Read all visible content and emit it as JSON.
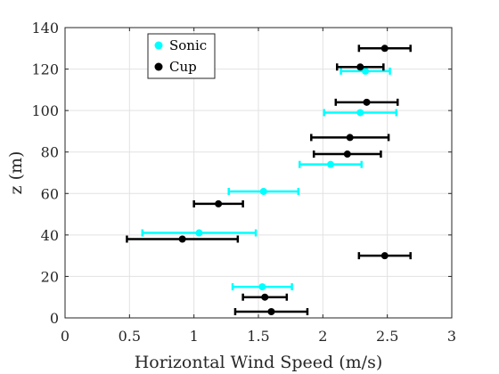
{
  "chart_data": {
    "type": "scatter",
    "title": "",
    "xlabel": "Horizontal Wind Speed (m/s)",
    "ylabel": "z (m)",
    "xlim": [
      0,
      3
    ],
    "ylim": [
      0,
      140
    ],
    "xticks": [
      0,
      0.5,
      1,
      1.5,
      2,
      2.5,
      3
    ],
    "yticks": [
      0,
      20,
      40,
      60,
      80,
      100,
      120,
      140
    ],
    "xtick_labels": [
      "0",
      "0.5",
      "1",
      "1.5",
      "2",
      "2.5",
      "3"
    ],
    "ytick_labels": [
      "0",
      "20",
      "40",
      "60",
      "80",
      "100",
      "120",
      "140"
    ],
    "grid": true,
    "legend_position": "top-left",
    "error_bars": "horizontal",
    "series": [
      {
        "name": "Sonic",
        "color": "#00ffff",
        "points": [
          {
            "x": 1.53,
            "y": 15,
            "xerr": 0.23
          },
          {
            "x": 1.04,
            "y": 41,
            "xerr": 0.44
          },
          {
            "x": 1.54,
            "y": 61,
            "xerr": 0.27
          },
          {
            "x": 2.06,
            "y": 74,
            "xerr": 0.24
          },
          {
            "x": 2.29,
            "y": 99,
            "xerr": 0.28
          },
          {
            "x": 2.33,
            "y": 119,
            "xerr": 0.19
          }
        ]
      },
      {
        "name": "Cup",
        "color": "#000000",
        "points": [
          {
            "x": 1.6,
            "y": 3,
            "xerr": 0.28
          },
          {
            "x": 1.55,
            "y": 10,
            "xerr": 0.17
          },
          {
            "x": 2.48,
            "y": 30,
            "xerr": 0.2
          },
          {
            "x": 0.91,
            "y": 38,
            "xerr": 0.43
          },
          {
            "x": 1.19,
            "y": 55,
            "xerr": 0.19
          },
          {
            "x": 2.19,
            "y": 79,
            "xerr": 0.26
          },
          {
            "x": 2.21,
            "y": 87,
            "xerr": 0.3
          },
          {
            "x": 2.34,
            "y": 104,
            "xerr": 0.24
          },
          {
            "x": 2.29,
            "y": 121,
            "xerr": 0.18
          },
          {
            "x": 2.48,
            "y": 130,
            "xerr": 0.2
          }
        ]
      }
    ]
  }
}
